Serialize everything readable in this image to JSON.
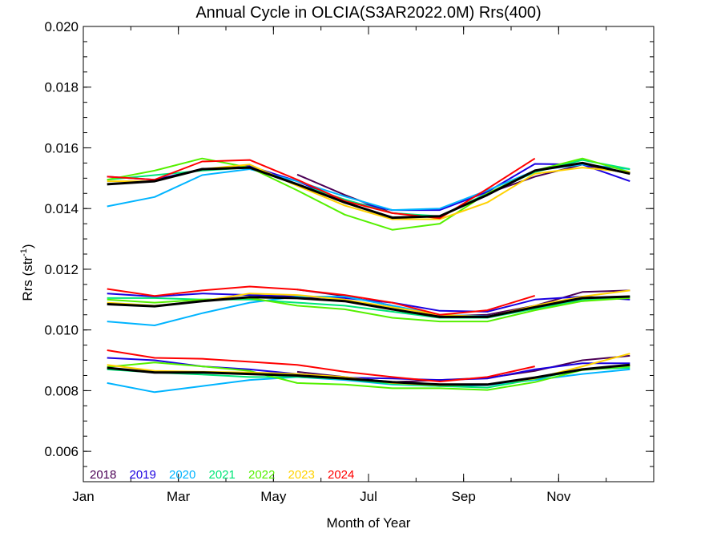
{
  "chart_data": {
    "type": "line",
    "title": "Annual Cycle in OLCIA(S3AR2022.0M) Rrs(400)",
    "xlabel": "Month of Year",
    "ylabel_main": "Rrs (str",
    "ylabel_sup": "-1",
    "ylabel_close": ")",
    "xlim": [
      1,
      13
    ],
    "ylim": [
      0.005,
      0.02
    ],
    "xticks": [
      {
        "value": 1,
        "label": "Jan"
      },
      {
        "value": 3,
        "label": "Mar"
      },
      {
        "value": 5,
        "label": "May"
      },
      {
        "value": 7,
        "label": "Jul"
      },
      {
        "value": 9,
        "label": "Sep"
      },
      {
        "value": 11,
        "label": "Nov"
      }
    ],
    "yticks": [
      {
        "value": 0.006,
        "label": "0.006"
      },
      {
        "value": 0.008,
        "label": "0.008"
      },
      {
        "value": 0.01,
        "label": "0.010"
      },
      {
        "value": 0.012,
        "label": "0.012"
      },
      {
        "value": 0.014,
        "label": "0.014"
      },
      {
        "value": 0.016,
        "label": "0.016"
      },
      {
        "value": 0.018,
        "label": "0.018"
      },
      {
        "value": 0.02,
        "label": "0.020"
      }
    ],
    "grid": false,
    "legend_position": "bottom-left",
    "x": [
      1.5,
      2.5,
      3.5,
      4.5,
      5.5,
      6.5,
      7.5,
      8.5,
      9.5,
      10.5,
      11.5,
      12.5
    ],
    "series": [
      {
        "name": "2018",
        "color": "#4b0055",
        "upper": [
          null,
          null,
          null,
          null,
          0.01512,
          0.01445,
          0.01385,
          0.01372,
          0.0145,
          0.01505,
          0.01545,
          0.01515
        ],
        "middle": [
          null,
          null,
          null,
          null,
          0.01133,
          0.01112,
          0.0108,
          0.01045,
          0.0105,
          0.0108,
          0.01125,
          0.0113
        ],
        "lower": [
          null,
          null,
          null,
          null,
          0.00862,
          0.00845,
          0.00828,
          0.00835,
          0.00842,
          0.00865,
          0.009,
          0.00915
        ]
      },
      {
        "name": "2019",
        "color": "#1a00e0",
        "upper": [
          0.01505,
          0.01495,
          0.0153,
          0.0154,
          0.0149,
          0.01425,
          0.01395,
          0.01395,
          0.01455,
          0.01547,
          0.01545,
          0.0149
        ],
        "middle": [
          0.0112,
          0.0111,
          0.0112,
          0.01115,
          0.0111,
          0.01105,
          0.0109,
          0.01063,
          0.0106,
          0.011,
          0.0111,
          0.011
        ],
        "lower": [
          0.00908,
          0.009,
          0.0088,
          0.0087,
          0.00855,
          0.00843,
          0.0084,
          0.00835,
          0.0084,
          0.0087,
          0.0089,
          0.0089
        ]
      },
      {
        "name": "2020",
        "color": "#00b4ff",
        "upper": [
          0.01407,
          0.01438,
          0.0151,
          0.0153,
          0.0149,
          0.0144,
          0.01395,
          0.014,
          0.0146,
          0.01525,
          0.01545,
          0.0153
        ],
        "middle": [
          0.01028,
          0.01015,
          0.01055,
          0.0109,
          0.0111,
          0.0111,
          0.0108,
          0.0105,
          0.01045,
          0.0107,
          0.01095,
          0.0111
        ],
        "lower": [
          0.00825,
          0.00795,
          0.00815,
          0.00835,
          0.00845,
          0.00835,
          0.0082,
          0.00815,
          0.00818,
          0.00835,
          0.00855,
          0.0087
        ]
      },
      {
        "name": "2021",
        "color": "#00e678",
        "upper": [
          0.01495,
          0.0151,
          0.01525,
          0.01535,
          0.0148,
          0.0143,
          0.01385,
          0.01375,
          0.0145,
          0.0152,
          0.0156,
          0.0153
        ],
        "middle": [
          0.01105,
          0.01105,
          0.011,
          0.011,
          0.0109,
          0.0108,
          0.0106,
          0.0104,
          0.0104,
          0.0107,
          0.011,
          0.0111
        ],
        "lower": [
          0.0087,
          0.0086,
          0.00853,
          0.00845,
          0.00845,
          0.00838,
          0.00822,
          0.00815,
          0.0081,
          0.00838,
          0.0087,
          0.00875
        ]
      },
      {
        "name": "2022",
        "color": "#55f000",
        "upper": [
          0.01495,
          0.01525,
          0.01565,
          0.01535,
          0.0146,
          0.0138,
          0.0133,
          0.0135,
          0.0145,
          0.01525,
          0.01565,
          0.0152
        ],
        "middle": [
          0.011,
          0.0109,
          0.011,
          0.01105,
          0.0108,
          0.01068,
          0.0104,
          0.01028,
          0.01028,
          0.01065,
          0.01095,
          0.01105
        ],
        "lower": [
          0.00878,
          0.00893,
          0.0088,
          0.00865,
          0.00825,
          0.0082,
          0.00808,
          0.00808,
          0.00802,
          0.00828,
          0.00868,
          0.0088
        ]
      },
      {
        "name": "2023",
        "color": "#ffd200",
        "upper": [
          0.0149,
          0.0149,
          0.0153,
          0.01545,
          0.01475,
          0.0141,
          0.01365,
          0.01365,
          0.0142,
          0.01515,
          0.01535,
          0.0152
        ],
        "middle": [
          0.0109,
          0.0108,
          0.01095,
          0.0112,
          0.01115,
          0.011,
          0.01075,
          0.0105,
          0.01043,
          0.0108,
          0.0111,
          0.0113
        ],
        "lower": [
          0.00885,
          0.00865,
          0.00862,
          0.0086,
          0.00855,
          0.00845,
          0.00825,
          0.00818,
          0.0082,
          0.0084,
          0.0088,
          0.00922
        ]
      },
      {
        "name": "2024",
        "color": "#ff0000",
        "upper": [
          0.01505,
          0.01495,
          0.01555,
          0.0156,
          0.01495,
          0.01425,
          0.01385,
          0.01368,
          0.01465,
          0.01565,
          null,
          null
        ],
        "middle": [
          0.01135,
          0.01112,
          0.0113,
          0.01143,
          0.01133,
          0.01115,
          0.0109,
          0.0105,
          0.01065,
          0.01113,
          null,
          null
        ],
        "lower": [
          0.00933,
          0.00908,
          0.00905,
          0.00895,
          0.00885,
          0.00862,
          0.00845,
          0.0083,
          0.00845,
          0.0088,
          null,
          null
        ]
      },
      {
        "name": "",
        "color": "#000000",
        "upper": [
          0.0148,
          0.0149,
          0.0153,
          0.01535,
          0.0148,
          0.0142,
          0.0137,
          0.01375,
          0.01445,
          0.01525,
          0.0155,
          0.01515
        ],
        "middle": [
          0.01085,
          0.01078,
          0.01095,
          0.01108,
          0.01105,
          0.01095,
          0.01068,
          0.01043,
          0.01043,
          0.01075,
          0.01105,
          0.0111
        ],
        "lower": [
          0.00875,
          0.0086,
          0.0086,
          0.00855,
          0.0085,
          0.0084,
          0.00828,
          0.0082,
          0.0082,
          0.00843,
          0.0087,
          0.00885
        ]
      }
    ]
  }
}
